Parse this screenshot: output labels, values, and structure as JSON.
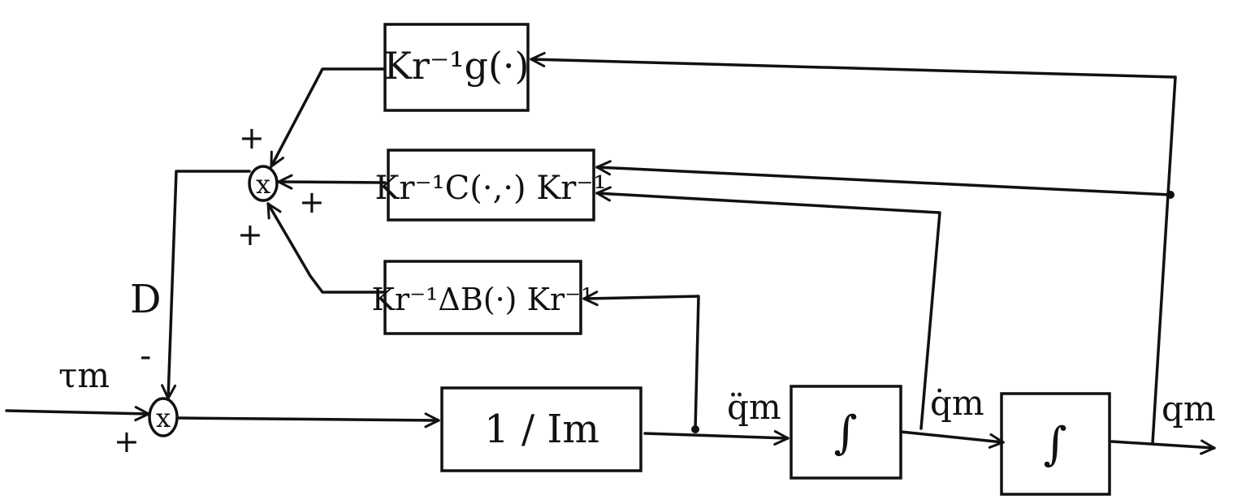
{
  "blocks": {
    "gravity": "Kr⁻¹g(·)",
    "coriolis": "Kr⁻¹C(·,·) Kr⁻¹",
    "inertia_delta": "Kr⁻¹ΔB(·) Kr⁻¹",
    "inverse_inertia": "1 / Im",
    "integrator_1": "∫",
    "integrator_2": "∫"
  },
  "junctions": {
    "upper": "x",
    "lower": "x"
  },
  "signals": {
    "input_torque": "τm",
    "disturbance": "D",
    "acceleration": "q̈m",
    "velocity": "q̇m",
    "position": "qm"
  },
  "signs": {
    "upper_top": "+",
    "upper_right": "+",
    "upper_bottom": "+",
    "lower_top": "-",
    "lower_left": "+"
  }
}
